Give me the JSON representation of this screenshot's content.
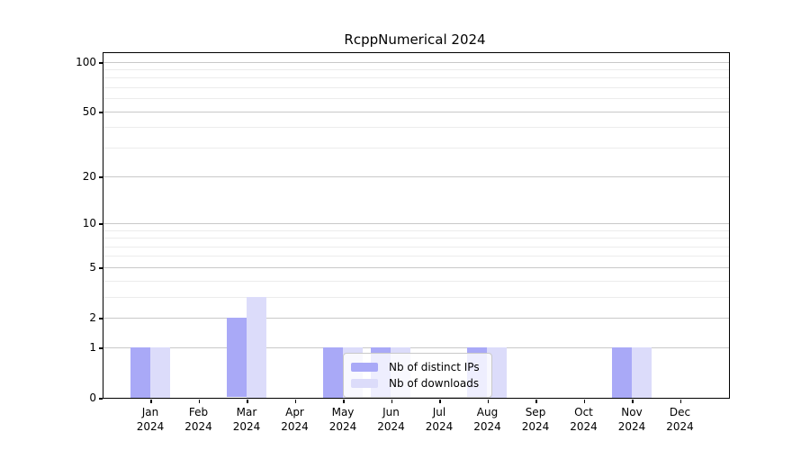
{
  "chart_data": {
    "type": "bar",
    "title": "RcppNumerical 2024",
    "scale": "log1p",
    "ylim": [
      0,
      113
    ],
    "grid": true,
    "legend_position": "inside-bottom-center",
    "categories": [
      "Jan",
      "Feb",
      "Mar",
      "Apr",
      "May",
      "Jun",
      "Jul",
      "Aug",
      "Sep",
      "Oct",
      "Nov",
      "Dec"
    ],
    "x_year_label": "2024",
    "y_ticks": [
      0,
      1,
      2,
      5,
      10,
      20,
      50,
      100
    ],
    "y_minor_gridlines": [
      3,
      4,
      6,
      7,
      8,
      9,
      30,
      40,
      60,
      70,
      80,
      90
    ],
    "series": [
      {
        "name": "Nb of distinct IPs",
        "color": "#a9a9f7",
        "values": [
          1,
          0,
          2,
          0,
          1,
          1,
          0,
          1,
          0,
          0,
          1,
          0
        ]
      },
      {
        "name": "Nb of downloads",
        "color": "#dcdcfa",
        "values": [
          1,
          0,
          3,
          0,
          1,
          1,
          0,
          1,
          0,
          0,
          1,
          0
        ]
      }
    ],
    "colors": {
      "major_gridline": "#c9c9c9",
      "minor_gridline": "#ececec",
      "axis": "#000000",
      "legend_border": "#c9c9c9"
    }
  }
}
